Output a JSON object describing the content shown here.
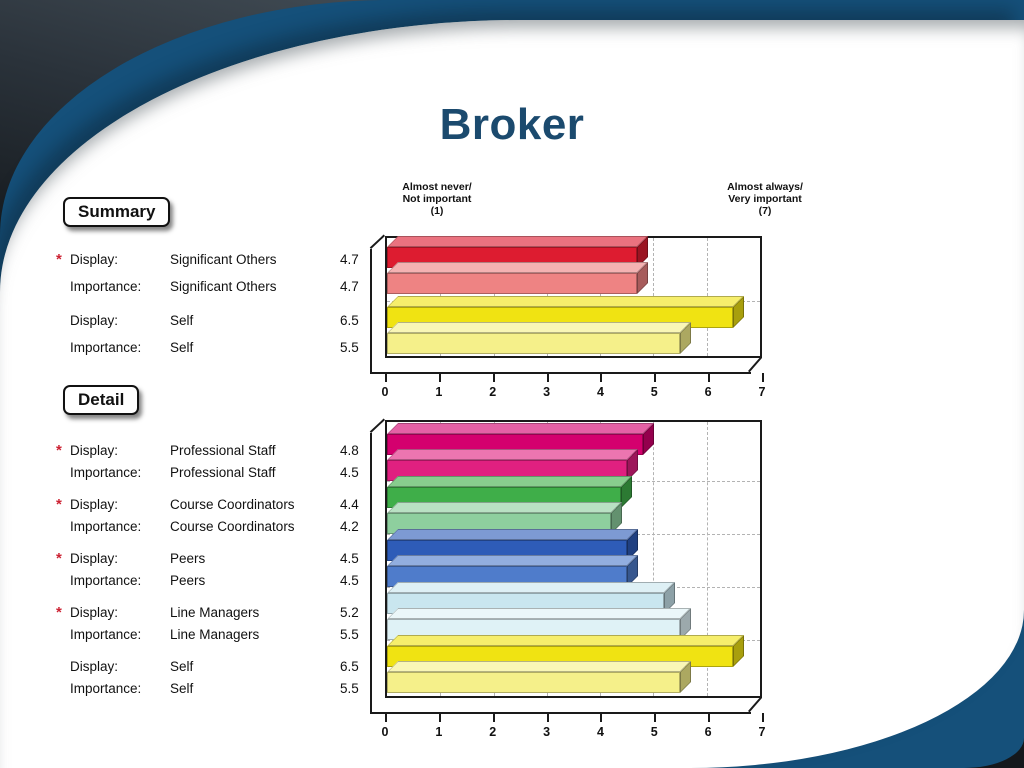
{
  "slide": {
    "title": "Broker"
  },
  "row_labels": {
    "display": "Display:",
    "importance": "Importance:",
    "flag": "*"
  },
  "scale_headers": {
    "left": [
      "Almost never/",
      "Not important",
      "(1)"
    ],
    "right": [
      "Almost always/",
      "Very important",
      "(7)"
    ]
  },
  "sections": [
    {
      "button_label": "Summary",
      "flags": [
        true,
        false
      ]
    },
    {
      "button_label": "Detail",
      "flags": [
        true,
        true,
        true,
        true,
        false
      ]
    }
  ],
  "chart_data": [
    {
      "type": "bar",
      "orientation": "horizontal",
      "style": "3d",
      "title": "Summary",
      "categories": [
        "Significant Others",
        "Self"
      ],
      "series": [
        {
          "name": "Display",
          "values": [
            4.7,
            6.5
          ]
        },
        {
          "name": "Importance",
          "values": [
            4.7,
            5.5
          ]
        }
      ],
      "colors": {
        "display": [
          "#dd1c30",
          "#f0e312"
        ],
        "importance": [
          "#ee8383",
          "#f5f08a"
        ]
      },
      "xlim": [
        0,
        7
      ],
      "xticks": [
        0,
        1,
        2,
        3,
        4,
        5,
        6,
        7
      ],
      "grid": "dashed",
      "scale_note_left": "Almost never/ Not important (1)",
      "scale_note_right": "Almost always/ Very important (7)"
    },
    {
      "type": "bar",
      "orientation": "horizontal",
      "style": "3d",
      "title": "Detail",
      "categories": [
        "Professional Staff",
        "Course Coordinators",
        "Peers",
        "Line Managers",
        "Self"
      ],
      "series": [
        {
          "name": "Display",
          "values": [
            4.8,
            4.4,
            4.5,
            5.2,
            6.5
          ]
        },
        {
          "name": "Importance",
          "values": [
            4.5,
            4.2,
            4.5,
            5.5,
            5.5
          ]
        }
      ],
      "colors": {
        "display": [
          "#d4006e",
          "#3fae49",
          "#2e5cb8",
          "#c9e6ef",
          "#f0e312"
        ],
        "importance": [
          "#e02080",
          "#8ecf9e",
          "#4f7ccb",
          "#dff2f6",
          "#f5f08a"
        ]
      },
      "xlim": [
        0,
        7
      ],
      "xticks": [
        0,
        1,
        2,
        3,
        4,
        5,
        6,
        7
      ],
      "grid": "dashed"
    }
  ]
}
